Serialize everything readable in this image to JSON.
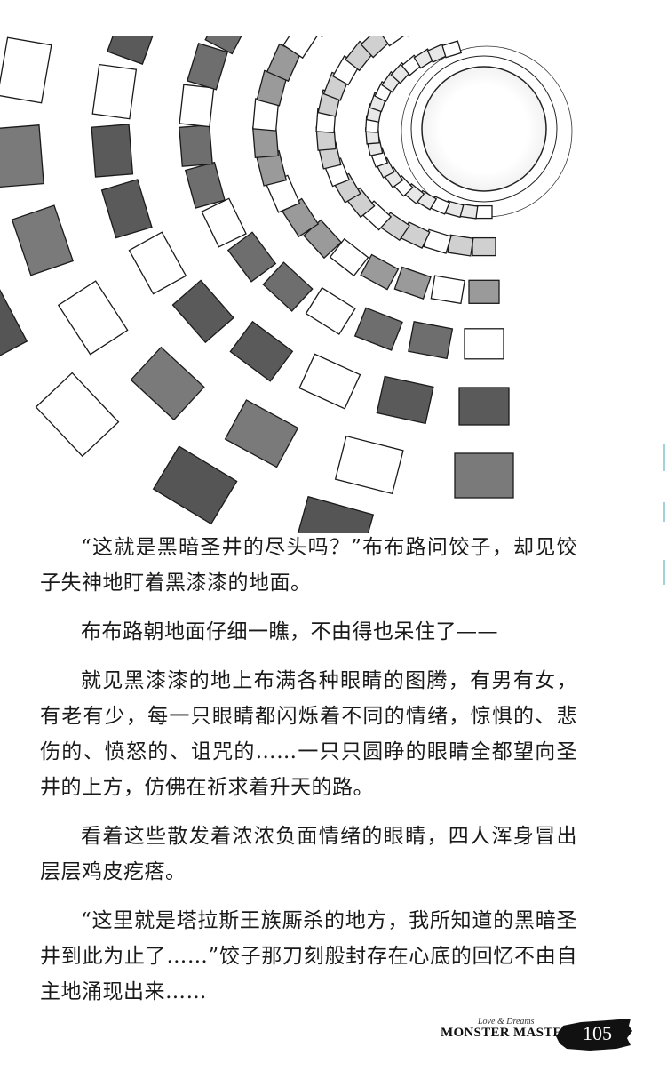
{
  "paragraphs": [
    "“这就是黑暗圣井的尽头吗？”布布路问饺子，却见饺子失神地盯着黑漆漆的地面。",
    "布布路朝地面仔细一瞧，不由得也呆住了——",
    "就见黑漆漆的地上布满各种眼睛的图腾，有男有女，有老有少，每一只眼睛都闪烁着不同的情绪，惊惧的、悲伤的、愤怒的、诅咒的……一只只圆睁的眼睛全都望向圣井的上方，仿佛在祈求着升天的路。",
    "看着这些散发着浓浓负面情绪的眼睛，四人浑身冒出层层鸡皮疙瘩。",
    "“这里就是塔拉斯王族厮杀的地方，我所知道的黑暗圣井到此为止了……”饺子那刀刻般封存在心底的回忆不由自主地涌现出来……"
  ],
  "footer": {
    "tagline": "Love & Dreams",
    "series": "MONSTER MASTER",
    "page_number": "105"
  },
  "illustration": {
    "icon": "stone-well-illustration"
  }
}
